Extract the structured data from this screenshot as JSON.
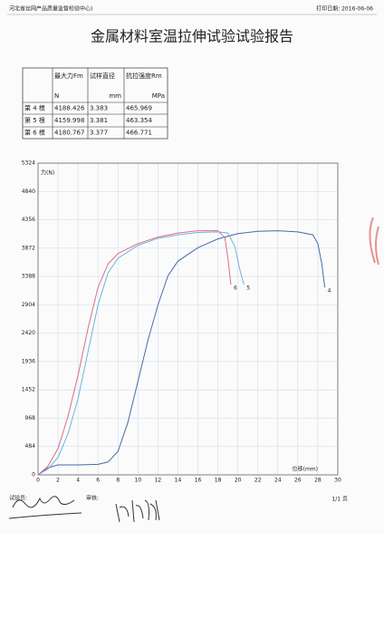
{
  "header": {
    "org": "河北省丝网产品质量监督检验中心)",
    "print_date": "打印日期: 2016-06-06",
    "title": "金属材料室温拉伸试验试验报告"
  },
  "table": {
    "header": [
      "",
      "最大力Fm",
      "试样直径",
      "抗拉强度Rm"
    ],
    "units": [
      "",
      "N",
      "mm",
      "MPa"
    ],
    "rows": [
      [
        "第 4 根",
        "4188.426",
        "3.383",
        "465.969"
      ],
      [
        "第 5 根",
        "4159.998",
        "3.381",
        "463.354"
      ],
      [
        "第 6 根",
        "4180.767",
        "3.377",
        "466.771"
      ]
    ]
  },
  "chart_data": {
    "type": "line",
    "y_label": "力(N)",
    "x_label": "位移(mm)",
    "xlim": [
      0,
      30
    ],
    "xticks": [
      0,
      2,
      4,
      6,
      8,
      10,
      12,
      14,
      16,
      18,
      20,
      22,
      24,
      26,
      28,
      30
    ],
    "ylim": [
      0,
      5324
    ],
    "yticks": [
      0,
      484,
      968,
      1452,
      1936,
      2420,
      2904,
      3388,
      3872,
      4356,
      4840,
      5324
    ],
    "grid": true,
    "series": [
      {
        "name": "4",
        "color": "#4a6aa8",
        "x": [
          0,
          1,
          2,
          4,
          6,
          7,
          8,
          9,
          10,
          11,
          12,
          13,
          14,
          16,
          18,
          20,
          22,
          24,
          26,
          27.5,
          28,
          28.4,
          28.7
        ],
        "values": [
          0,
          120,
          170,
          170,
          180,
          220,
          400,
          900,
          1600,
          2300,
          2900,
          3400,
          3650,
          3880,
          4030,
          4120,
          4160,
          4170,
          4150,
          4100,
          3950,
          3600,
          3200
        ]
      },
      {
        "name": "5",
        "color": "#6cb4e0",
        "x": [
          0,
          1,
          2,
          3,
          4,
          5,
          6,
          7,
          8,
          10,
          12,
          14,
          16,
          18,
          19,
          19.7,
          20.2,
          20.6
        ],
        "values": [
          0,
          100,
          300,
          700,
          1300,
          2100,
          2900,
          3450,
          3700,
          3920,
          4040,
          4100,
          4140,
          4150,
          4130,
          3900,
          3500,
          3250
        ]
      },
      {
        "name": "6",
        "color": "#e06a86",
        "x": [
          0,
          1,
          2,
          3,
          4,
          5,
          6,
          7,
          8,
          10,
          12,
          14,
          16,
          18,
          18.7,
          19,
          19.3
        ],
        "values": [
          0,
          150,
          450,
          1000,
          1700,
          2500,
          3200,
          3600,
          3780,
          3950,
          4060,
          4130,
          4170,
          4170,
          4050,
          3700,
          3250
        ]
      }
    ]
  },
  "footer": {
    "tester": "试验员:",
    "reviewer": "审核:",
    "page": "1/1 页"
  }
}
